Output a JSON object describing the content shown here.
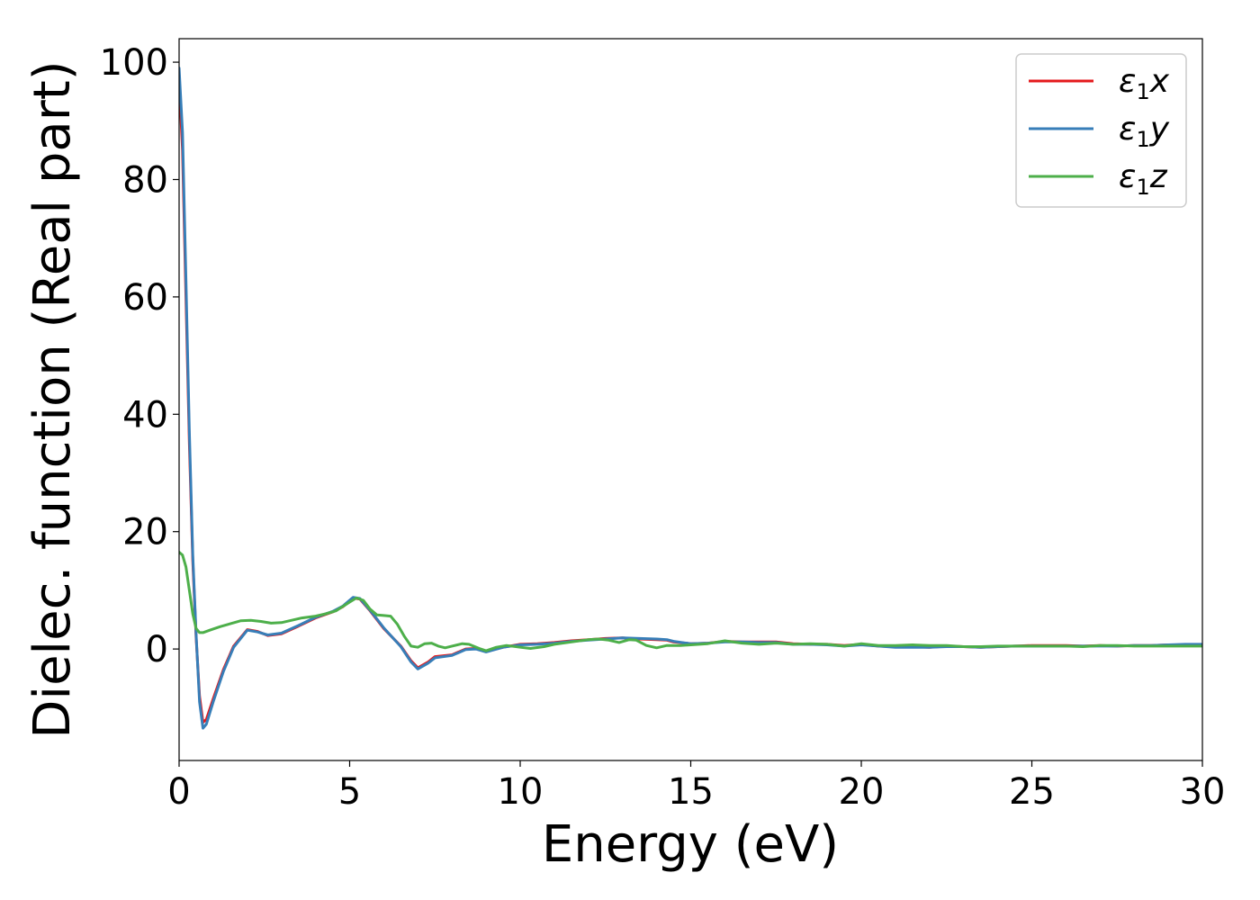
{
  "chart_data": {
    "type": "line",
    "title": "",
    "xlabel": "Energy (eV)",
    "ylabel": "Dielec. function (Real part)",
    "xlim": [
      0,
      30
    ],
    "ylim": [
      -19,
      104
    ],
    "xticks": [
      0,
      5,
      10,
      15,
      20,
      25,
      30
    ],
    "yticks": [
      0,
      20,
      40,
      60,
      80,
      100
    ],
    "grid": false,
    "legend": "top-right",
    "series": [
      {
        "name": "ε1x",
        "legend_main": "ε",
        "legend_sub": "1",
        "legend_suffix": "x",
        "color": "#e41a1c",
        "points": [
          [
            0,
            97
          ],
          [
            0.1,
            85
          ],
          [
            0.2,
            60
          ],
          [
            0.3,
            35
          ],
          [
            0.4,
            15
          ],
          [
            0.5,
            2
          ],
          [
            0.6,
            -8
          ],
          [
            0.7,
            -12.5
          ],
          [
            0.8,
            -12
          ],
          [
            1.0,
            -8.5
          ],
          [
            1.3,
            -3.5
          ],
          [
            1.6,
            0.5
          ],
          [
            2.0,
            3.3
          ],
          [
            2.3,
            3
          ],
          [
            2.6,
            2.3
          ],
          [
            3.0,
            2.6
          ],
          [
            3.5,
            3.9
          ],
          [
            4.0,
            5.3
          ],
          [
            4.5,
            6.3
          ],
          [
            4.8,
            7.2
          ],
          [
            5.1,
            8.7
          ],
          [
            5.3,
            8.5
          ],
          [
            5.6,
            6.5
          ],
          [
            6.0,
            3.5
          ],
          [
            6.5,
            0.5
          ],
          [
            6.8,
            -2
          ],
          [
            7.0,
            -3.2
          ],
          [
            7.3,
            -2.2
          ],
          [
            7.5,
            -1.3
          ],
          [
            8.0,
            -1
          ],
          [
            8.4,
            0
          ],
          [
            8.7,
            0.1
          ],
          [
            9.0,
            -0.4
          ],
          [
            9.5,
            0.3
          ],
          [
            10,
            0.8
          ],
          [
            10.5,
            0.9
          ],
          [
            11,
            1.1
          ],
          [
            11.5,
            1.4
          ],
          [
            12,
            1.6
          ],
          [
            12.5,
            1.8
          ],
          [
            13,
            1.9
          ],
          [
            13.5,
            1.7
          ],
          [
            14,
            1.6
          ],
          [
            14.3,
            1.5
          ],
          [
            14.5,
            1.2
          ],
          [
            15,
            0.9
          ],
          [
            15.5,
            1.0
          ],
          [
            16,
            1.3
          ],
          [
            16.5,
            1.2
          ],
          [
            17,
            1.2
          ],
          [
            17.5,
            1.2
          ],
          [
            18,
            0.9
          ],
          [
            18.5,
            0.8
          ],
          [
            19,
            0.8
          ],
          [
            19.5,
            0.6
          ],
          [
            20,
            0.8
          ],
          [
            20.5,
            0.5
          ],
          [
            21,
            0.4
          ],
          [
            21.5,
            0.4
          ],
          [
            22,
            0.3
          ],
          [
            22.5,
            0.5
          ],
          [
            23,
            0.4
          ],
          [
            23.5,
            0.3
          ],
          [
            24,
            0.4
          ],
          [
            24.5,
            0.5
          ],
          [
            25,
            0.6
          ],
          [
            25.5,
            0.6
          ],
          [
            26,
            0.6
          ],
          [
            26.5,
            0.5
          ],
          [
            27,
            0.6
          ],
          [
            27.5,
            0.5
          ],
          [
            28,
            0.6
          ],
          [
            28.5,
            0.6
          ],
          [
            29,
            0.7
          ],
          [
            29.5,
            0.7
          ],
          [
            30,
            0.7
          ]
        ]
      },
      {
        "name": "ε1y",
        "legend_main": "ε",
        "legend_sub": "1",
        "legend_suffix": "y",
        "color": "#377eb8",
        "points": [
          [
            0,
            99
          ],
          [
            0.1,
            88
          ],
          [
            0.2,
            63
          ],
          [
            0.3,
            37
          ],
          [
            0.4,
            16
          ],
          [
            0.5,
            2.5
          ],
          [
            0.6,
            -9
          ],
          [
            0.7,
            -13.5
          ],
          [
            0.8,
            -12.8
          ],
          [
            1.0,
            -9
          ],
          [
            1.3,
            -3.8
          ],
          [
            1.6,
            0.3
          ],
          [
            2.0,
            3.2
          ],
          [
            2.3,
            2.9
          ],
          [
            2.6,
            2.4
          ],
          [
            3.0,
            2.7
          ],
          [
            3.5,
            4.0
          ],
          [
            4.0,
            5.4
          ],
          [
            4.5,
            6.4
          ],
          [
            4.8,
            7.3
          ],
          [
            5.1,
            8.8
          ],
          [
            5.3,
            8.6
          ],
          [
            5.6,
            6.6
          ],
          [
            6.0,
            3.6
          ],
          [
            6.5,
            0.4
          ],
          [
            6.8,
            -2.2
          ],
          [
            7.0,
            -3.4
          ],
          [
            7.3,
            -2.4
          ],
          [
            7.5,
            -1.5
          ],
          [
            8.0,
            -1.1
          ],
          [
            8.4,
            -0.1
          ],
          [
            8.7,
            0
          ],
          [
            9.0,
            -0.5
          ],
          [
            9.5,
            0.3
          ],
          [
            10,
            0.7
          ],
          [
            10.5,
            0.8
          ],
          [
            11,
            1.0
          ],
          [
            11.5,
            1.3
          ],
          [
            12,
            1.5
          ],
          [
            12.5,
            1.7
          ],
          [
            13,
            1.9
          ],
          [
            13.5,
            1.8
          ],
          [
            14,
            1.7
          ],
          [
            14.3,
            1.6
          ],
          [
            14.5,
            1.3
          ],
          [
            15,
            0.9
          ],
          [
            15.5,
            1.0
          ],
          [
            16,
            1.2
          ],
          [
            16.5,
            1.2
          ],
          [
            17,
            1.1
          ],
          [
            17.5,
            1.1
          ],
          [
            18,
            0.8
          ],
          [
            18.5,
            0.8
          ],
          [
            19,
            0.7
          ],
          [
            19.5,
            0.5
          ],
          [
            20,
            0.7
          ],
          [
            20.5,
            0.5
          ],
          [
            21,
            0.3
          ],
          [
            21.5,
            0.3
          ],
          [
            22,
            0.3
          ],
          [
            22.5,
            0.4
          ],
          [
            23,
            0.4
          ],
          [
            23.5,
            0.3
          ],
          [
            24,
            0.4
          ],
          [
            24.5,
            0.5
          ],
          [
            25,
            0.5
          ],
          [
            25.5,
            0.5
          ],
          [
            26,
            0.5
          ],
          [
            26.5,
            0.5
          ],
          [
            27,
            0.5
          ],
          [
            27.5,
            0.5
          ],
          [
            28,
            0.6
          ],
          [
            28.5,
            0.6
          ],
          [
            29,
            0.7
          ],
          [
            29.5,
            0.8
          ],
          [
            30,
            0.8
          ]
        ]
      },
      {
        "name": "ε1z",
        "legend_main": "ε",
        "legend_sub": "1",
        "legend_suffix": "z",
        "color": "#4daf4a",
        "points": [
          [
            0,
            16.5
          ],
          [
            0.1,
            16
          ],
          [
            0.2,
            14
          ],
          [
            0.3,
            10
          ],
          [
            0.4,
            6
          ],
          [
            0.5,
            3.5
          ],
          [
            0.6,
            2.8
          ],
          [
            0.7,
            2.8
          ],
          [
            0.9,
            3.2
          ],
          [
            1.2,
            3.8
          ],
          [
            1.5,
            4.3
          ],
          [
            1.8,
            4.8
          ],
          [
            2.1,
            4.9
          ],
          [
            2.4,
            4.7
          ],
          [
            2.7,
            4.4
          ],
          [
            3.0,
            4.5
          ],
          [
            3.3,
            4.9
          ],
          [
            3.6,
            5.3
          ],
          [
            4.0,
            5.6
          ],
          [
            4.3,
            6.0
          ],
          [
            4.6,
            6.5
          ],
          [
            5.0,
            8.0
          ],
          [
            5.2,
            8.7
          ],
          [
            5.4,
            8.3
          ],
          [
            5.6,
            6.8
          ],
          [
            5.8,
            5.8
          ],
          [
            6.0,
            5.7
          ],
          [
            6.2,
            5.6
          ],
          [
            6.4,
            4.2
          ],
          [
            6.6,
            2.2
          ],
          [
            6.8,
            0.5
          ],
          [
            7.0,
            0.3
          ],
          [
            7.2,
            0.9
          ],
          [
            7.4,
            1.0
          ],
          [
            7.6,
            0.5
          ],
          [
            7.8,
            0.2
          ],
          [
            8.0,
            0.5
          ],
          [
            8.3,
            0.9
          ],
          [
            8.5,
            0.8
          ],
          [
            8.8,
            0.1
          ],
          [
            9.0,
            -0.3
          ],
          [
            9.3,
            0.3
          ],
          [
            9.6,
            0.6
          ],
          [
            10,
            0.3
          ],
          [
            10.3,
            0.1
          ],
          [
            10.7,
            0.4
          ],
          [
            11,
            0.8
          ],
          [
            11.5,
            1.2
          ],
          [
            12,
            1.6
          ],
          [
            12.3,
            1.7
          ],
          [
            12.6,
            1.5
          ],
          [
            12.9,
            1.1
          ],
          [
            13.2,
            1.6
          ],
          [
            13.4,
            1.5
          ],
          [
            13.7,
            0.6
          ],
          [
            14,
            0.2
          ],
          [
            14.3,
            0.6
          ],
          [
            14.7,
            0.6
          ],
          [
            15,
            0.7
          ],
          [
            15.5,
            0.9
          ],
          [
            16,
            1.4
          ],
          [
            16.5,
            1.0
          ],
          [
            17,
            0.8
          ],
          [
            17.5,
            1.0
          ],
          [
            18,
            0.8
          ],
          [
            18.5,
            0.9
          ],
          [
            19,
            0.8
          ],
          [
            19.5,
            0.5
          ],
          [
            20,
            0.9
          ],
          [
            20.5,
            0.6
          ],
          [
            21,
            0.6
          ],
          [
            21.5,
            0.7
          ],
          [
            22,
            0.6
          ],
          [
            22.5,
            0.6
          ],
          [
            23,
            0.4
          ],
          [
            23.5,
            0.4
          ],
          [
            24,
            0.5
          ],
          [
            24.5,
            0.5
          ],
          [
            25,
            0.5
          ],
          [
            25.5,
            0.5
          ],
          [
            26,
            0.5
          ],
          [
            26.5,
            0.4
          ],
          [
            27,
            0.6
          ],
          [
            27.5,
            0.6
          ],
          [
            28,
            0.5
          ],
          [
            28.5,
            0.5
          ],
          [
            29,
            0.5
          ],
          [
            29.5,
            0.5
          ],
          [
            30,
            0.5
          ]
        ]
      }
    ]
  }
}
